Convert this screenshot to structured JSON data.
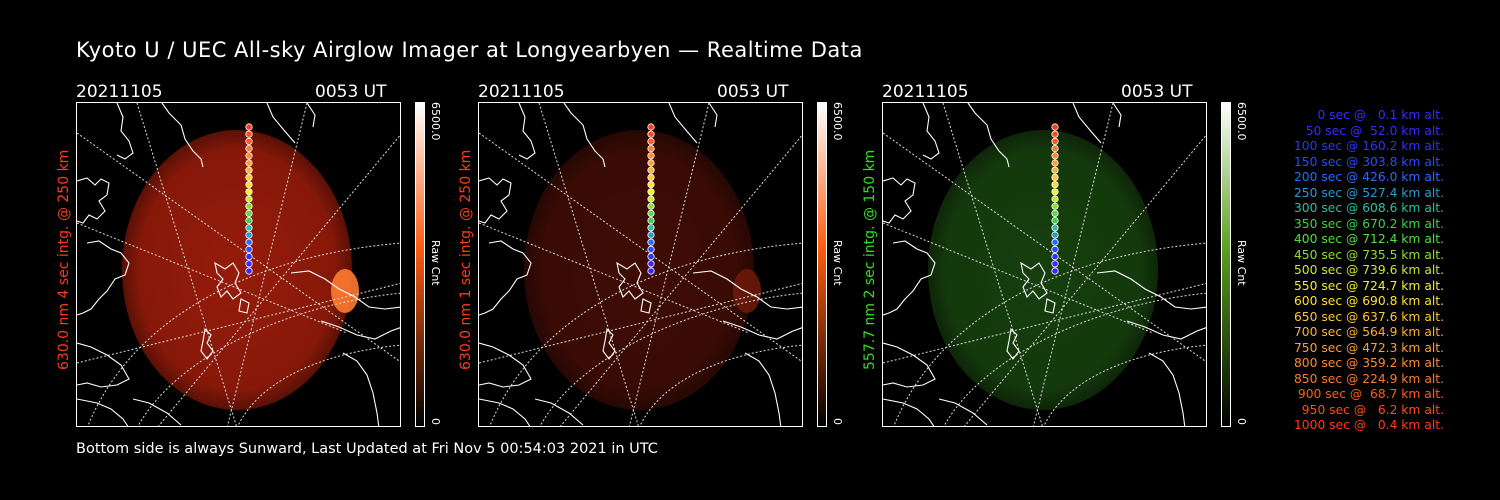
{
  "title": "Kyoto U / UEC All-sky Airglow Imager at Longyearbyen — Realtime Data",
  "panels": [
    {
      "date": "20211105",
      "time": "0053 UT",
      "ylabel": "630.0 nm 4 sec intg. @ 250 km",
      "ylabel_color": "#ff3a1a",
      "cbar_max": "6500.0",
      "cbar_min": "0",
      "cbar_label": "Raw Cnt",
      "cbar_top": "#ffffff",
      "cbar_mid": "#ff5a10",
      "cbar_bottom": "#000000",
      "glow_color": "#b0200c",
      "glow_opacity": 0.85
    },
    {
      "date": "20211105",
      "time": "0053 UT",
      "ylabel": "630.0 nm 1 sec intg. @ 250 km",
      "ylabel_color": "#ff3a1a",
      "cbar_max": "6500.0",
      "cbar_min": "0",
      "cbar_label": "Raw Cnt",
      "cbar_top": "#ffffff",
      "cbar_mid": "#ff5a10",
      "cbar_bottom": "#000000",
      "glow_color": "#4a0e06",
      "glow_opacity": 0.85
    },
    {
      "date": "20211105",
      "time": "0053 UT",
      "ylabel": "557.7 nm 2 sec intg. @ 150 km",
      "ylabel_color": "#33dd22",
      "cbar_max": "6500.0",
      "cbar_min": "0",
      "cbar_label": "Raw Cnt",
      "cbar_top": "#ffffff",
      "cbar_mid": "#5aa020",
      "cbar_bottom": "#000000",
      "glow_color": "#1a4a10",
      "glow_opacity": 0.85
    }
  ],
  "footer": "Bottom side is always Sunward, Last Updated at Fri Nov  5 00:54:03 2021 in UTC",
  "legend": [
    {
      "text": "0 sec @   0.1 km alt.",
      "color": "#3a2aff"
    },
    {
      "text": "50 sec @  52.0 km alt.",
      "color": "#3a2aff"
    },
    {
      "text": "100 sec @ 160.2 km alt.",
      "color": "#2a34ff"
    },
    {
      "text": "150 sec @ 303.8 km alt.",
      "color": "#2a4aff"
    },
    {
      "text": "200 sec @ 426.0 km alt.",
      "color": "#2a6aff"
    },
    {
      "text": "250 sec @ 527.4 km alt.",
      "color": "#2a9ad0"
    },
    {
      "text": "300 sec @ 608.6 km alt.",
      "color": "#2ac0a0"
    },
    {
      "text": "350 sec @ 670.2 km alt.",
      "color": "#3ad050"
    },
    {
      "text": "400 sec @ 712.4 km alt.",
      "color": "#50e040"
    },
    {
      "text": "450 sec @ 735.5 km alt.",
      "color": "#8ae030"
    },
    {
      "text": "500 sec @ 739.6 km alt.",
      "color": "#c8e830"
    },
    {
      "text": "550 sec @ 724.7 km alt.",
      "color": "#f0f030"
    },
    {
      "text": "600 sec @ 690.8 km alt.",
      "color": "#ffe030"
    },
    {
      "text": "650 sec @ 637.6 km alt.",
      "color": "#ffc830"
    },
    {
      "text": "700 sec @ 564.9 km alt.",
      "color": "#ffb030"
    },
    {
      "text": "750 sec @ 472.3 km alt.",
      "color": "#ffa030"
    },
    {
      "text": "800 sec @ 359.2 km alt.",
      "color": "#ff8a30"
    },
    {
      "text": "850 sec @ 224.9 km alt.",
      "color": "#ff7a2a"
    },
    {
      "text": "900 sec @  68.7 km alt.",
      "color": "#ff5a20"
    },
    {
      "text": "950 sec @   6.2 km alt.",
      "color": "#ff4a1a"
    },
    {
      "text": "1000 sec @   0.4 km alt.",
      "color": "#ff3a1a"
    }
  ]
}
